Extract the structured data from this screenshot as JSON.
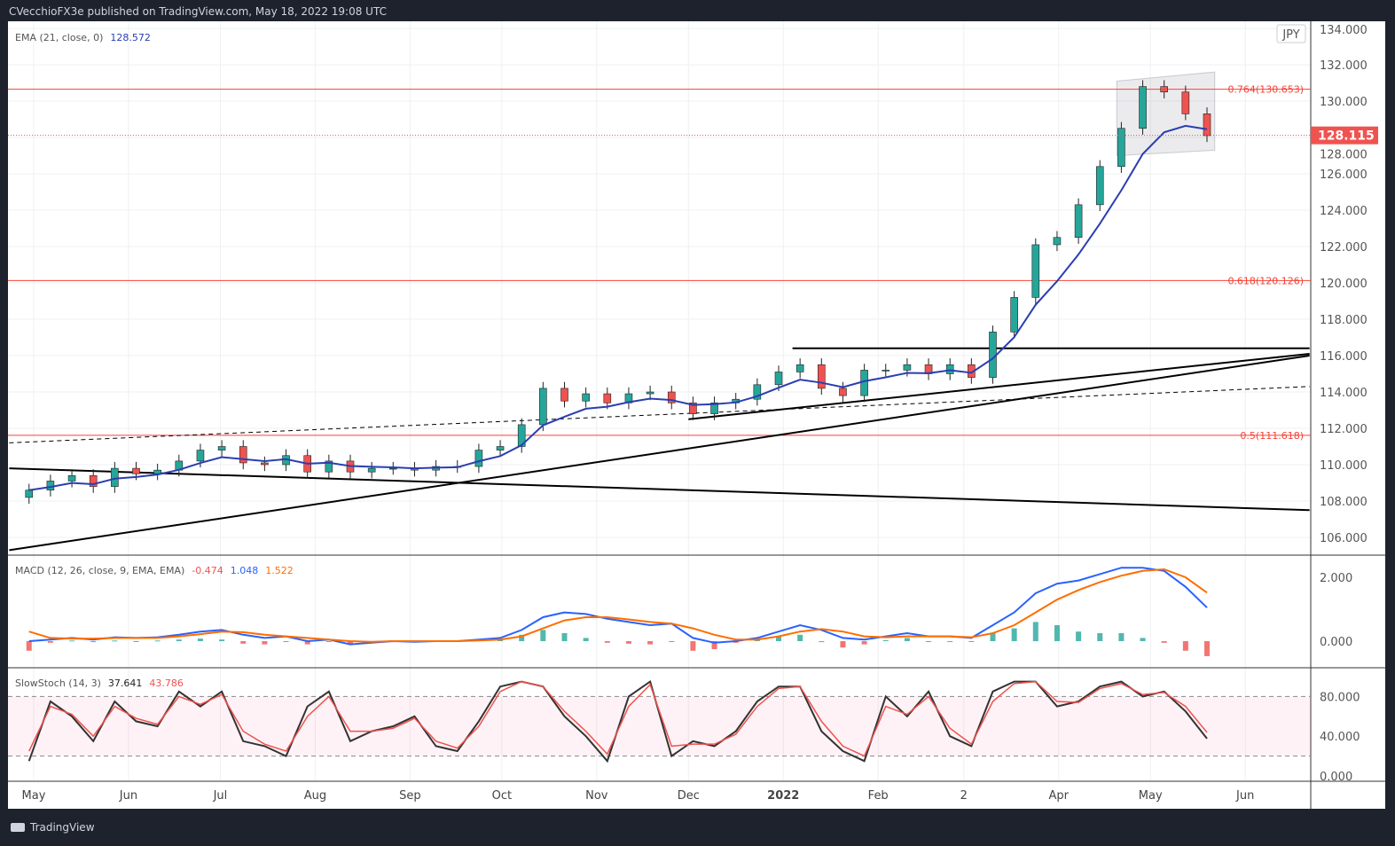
{
  "header": {
    "text": "CVecchioFX3e published on TradingView.com, May 18, 2022 19:08 UTC"
  },
  "footer": {
    "brand": "TradingView"
  },
  "colors": {
    "up": "#26a69a",
    "down": "#ef5350",
    "ema": "#2a3eb1",
    "macd": "#2962ff",
    "signal": "#ff6d00",
    "stochK": "#333333",
    "stochD": "#ef5350",
    "fib": "#f44336"
  },
  "chart_data": [
    {
      "type": "candlestick",
      "symbol_currency": "JPY",
      "last_price": "128.115",
      "ylim": [
        105,
        134
      ],
      "yticks": [
        "106.000",
        "108.000",
        "110.000",
        "112.000",
        "114.000",
        "116.000",
        "118.000",
        "120.000",
        "122.000",
        "124.000",
        "126.000",
        "128.000",
        "130.000",
        "132.000",
        "134.000"
      ],
      "xticks": [
        [
          "2021-05-01",
          "May"
        ],
        [
          "2021-06-01",
          "Jun"
        ],
        [
          "2021-07-01",
          "Jul"
        ],
        [
          "2021-08-01",
          "Aug"
        ],
        [
          "2021-09-01",
          "Sep"
        ],
        [
          "2021-10-01",
          "Oct"
        ],
        [
          "2021-11-01",
          "Nov"
        ],
        [
          "2021-12-01",
          "Dec"
        ],
        [
          "2022-01-01",
          "2022"
        ],
        [
          "2022-02-01",
          "Feb"
        ],
        [
          "2022-03-01",
          "2"
        ],
        [
          "2022-04-01",
          "Apr"
        ],
        [
          "2022-05-01",
          "May"
        ],
        [
          "2022-06-01",
          "Jun"
        ]
      ],
      "legend": {
        "ema_label": "EMA (21, close, 0)",
        "ema_value": "128.572"
      },
      "closes": [
        [
          "2021-04-26",
          108.6
        ],
        [
          "2021-05-03",
          109.1
        ],
        [
          "2021-05-10",
          109.4
        ],
        [
          "2021-05-17",
          108.8
        ],
        [
          "2021-05-24",
          109.8
        ],
        [
          "2021-05-31",
          109.5
        ],
        [
          "2021-06-07",
          109.7
        ],
        [
          "2021-06-14",
          110.2
        ],
        [
          "2021-06-21",
          110.8
        ],
        [
          "2021-06-28",
          111.0
        ],
        [
          "2021-07-05",
          110.1
        ],
        [
          "2021-07-12",
          110.0
        ],
        [
          "2021-07-19",
          110.5
        ],
        [
          "2021-07-26",
          109.6
        ],
        [
          "2021-08-02",
          110.2
        ],
        [
          "2021-08-09",
          109.6
        ],
        [
          "2021-08-16",
          109.8
        ],
        [
          "2021-08-23",
          109.8
        ],
        [
          "2021-08-30",
          109.7
        ],
        [
          "2021-09-06",
          109.9
        ],
        [
          "2021-09-13",
          109.9
        ],
        [
          "2021-09-20",
          110.8
        ],
        [
          "2021-09-27",
          111.0
        ],
        [
          "2021-10-04",
          112.2
        ],
        [
          "2021-10-11",
          114.2
        ],
        [
          "2021-10-18",
          113.5
        ],
        [
          "2021-10-25",
          113.9
        ],
        [
          "2021-11-01",
          113.4
        ],
        [
          "2021-11-08",
          113.9
        ],
        [
          "2021-11-15",
          114.0
        ],
        [
          "2021-11-22",
          113.4
        ],
        [
          "2021-11-29",
          112.8
        ],
        [
          "2021-12-06",
          113.4
        ],
        [
          "2021-12-13",
          113.6
        ],
        [
          "2021-12-20",
          114.4
        ],
        [
          "2021-12-27",
          115.1
        ],
        [
          "2022-01-03",
          115.5
        ],
        [
          "2022-01-10",
          114.2
        ],
        [
          "2022-01-17",
          113.8
        ],
        [
          "2022-01-24",
          115.2
        ],
        [
          "2022-01-31",
          115.2
        ],
        [
          "2022-02-07",
          115.5
        ],
        [
          "2022-02-14",
          115.0
        ],
        [
          "2022-02-21",
          115.5
        ],
        [
          "2022-02-28",
          114.8
        ],
        [
          "2022-03-07",
          117.3
        ],
        [
          "2022-03-14",
          119.2
        ],
        [
          "2022-03-21",
          122.1
        ],
        [
          "2022-03-28",
          122.5
        ],
        [
          "2022-04-04",
          124.3
        ],
        [
          "2022-04-11",
          126.4
        ],
        [
          "2022-04-18",
          128.5
        ],
        [
          "2022-04-25",
          130.8
        ],
        [
          "2022-05-02",
          130.5
        ],
        [
          "2022-05-09",
          129.3
        ],
        [
          "2022-05-16",
          128.1
        ]
      ],
      "fib_levels": [
        {
          "label": "0.764(130.653)",
          "value": 130.653
        },
        {
          "label": "0.618(120.126)",
          "value": 120.126
        },
        {
          "label": "0.5(111.618)",
          "value": 111.618
        }
      ],
      "trendlines": [
        {
          "from": [
            "2022-01-04",
            116.4
          ],
          "to": [
            "2022-06-22",
            116.4
          ],
          "style": "solid"
        },
        {
          "from": [
            "2021-04-23",
            105.3
          ],
          "to": [
            "2022-06-22",
            116.0
          ],
          "style": "solid"
        },
        {
          "from": [
            "2021-12-01",
            112.5
          ],
          "to": [
            "2022-06-22",
            116.1
          ],
          "style": "solid"
        },
        {
          "from": [
            "2021-04-23",
            111.2
          ],
          "to": [
            "2022-06-22",
            114.3
          ],
          "style": "dashed"
        },
        {
          "from": [
            "2021-04-23",
            109.8
          ],
          "to": [
            "2022-06-22",
            107.5
          ],
          "style": "solid"
        }
      ],
      "channel": [
        [
          "2022-04-20",
          131.1
        ],
        [
          "2022-05-22",
          131.6
        ],
        [
          "2022-05-22",
          127.3
        ],
        [
          "2022-04-20",
          127.0
        ]
      ]
    },
    {
      "type": "line",
      "legend": {
        "label": "MACD (12, 26, close, 9, EMA, EMA)",
        "hist": "-0.474",
        "macd": "1.048",
        "signal": "1.522"
      },
      "ylim": [
        -0.4,
        2.7
      ],
      "yticks": [
        "0.000",
        "2.000"
      ],
      "macd": [
        0,
        0.05,
        0.1,
        0.05,
        0.12,
        0.1,
        0.12,
        0.2,
        0.3,
        0.35,
        0.2,
        0.1,
        0.15,
        0.0,
        0.05,
        -0.1,
        -0.05,
        0.0,
        -0.02,
        0.0,
        0.0,
        0.05,
        0.1,
        0.35,
        0.75,
        0.9,
        0.85,
        0.7,
        0.6,
        0.5,
        0.55,
        0.1,
        -0.05,
        0.0,
        0.1,
        0.3,
        0.5,
        0.35,
        0.1,
        0.05,
        0.15,
        0.25,
        0.15,
        0.15,
        0.1,
        0.5,
        0.9,
        1.5,
        1.8,
        1.9,
        2.1,
        2.3,
        2.3,
        2.2,
        1.7,
        1.05
      ],
      "signal": [
        0.3,
        0.1,
        0.08,
        0.08,
        0.1,
        0.1,
        0.1,
        0.15,
        0.22,
        0.3,
        0.28,
        0.2,
        0.15,
        0.1,
        0.05,
        0.0,
        -0.02,
        0.0,
        0.0,
        0.0,
        0.0,
        0.02,
        0.05,
        0.15,
        0.4,
        0.65,
        0.75,
        0.75,
        0.68,
        0.6,
        0.55,
        0.4,
        0.2,
        0.05,
        0.05,
        0.15,
        0.3,
        0.38,
        0.3,
        0.15,
        0.12,
        0.15,
        0.15,
        0.15,
        0.12,
        0.25,
        0.5,
        0.9,
        1.3,
        1.6,
        1.85,
        2.05,
        2.2,
        2.25,
        2.0,
        1.52
      ]
    },
    {
      "type": "line",
      "legend": {
        "label": "SlowStoch (14, 3)",
        "k": "37.641",
        "d": "43.786"
      },
      "ylim": [
        0,
        100
      ],
      "yticks": [
        "0.000",
        "40.000",
        "80.000"
      ],
      "band": [
        20,
        80
      ],
      "k": [
        15,
        75,
        60,
        35,
        75,
        55,
        50,
        85,
        70,
        85,
        35,
        30,
        20,
        70,
        85,
        35,
        45,
        50,
        60,
        30,
        25,
        55,
        90,
        95,
        90,
        60,
        40,
        15,
        80,
        95,
        20,
        35,
        30,
        45,
        75,
        90,
        90,
        45,
        25,
        15,
        80,
        60,
        85,
        40,
        30,
        85,
        95,
        95,
        70,
        75,
        90,
        95,
        80,
        85,
        65,
        37.6
      ],
      "d": [
        25,
        70,
        62,
        40,
        70,
        58,
        52,
        80,
        72,
        82,
        45,
        32,
        25,
        60,
        80,
        45,
        45,
        48,
        58,
        35,
        28,
        50,
        85,
        95,
        90,
        65,
        45,
        22,
        70,
        92,
        30,
        32,
        32,
        42,
        70,
        88,
        90,
        55,
        30,
        20,
        70,
        62,
        80,
        48,
        32,
        75,
        93,
        95,
        75,
        74,
        88,
        93,
        82,
        84,
        70,
        43.8
      ]
    }
  ]
}
